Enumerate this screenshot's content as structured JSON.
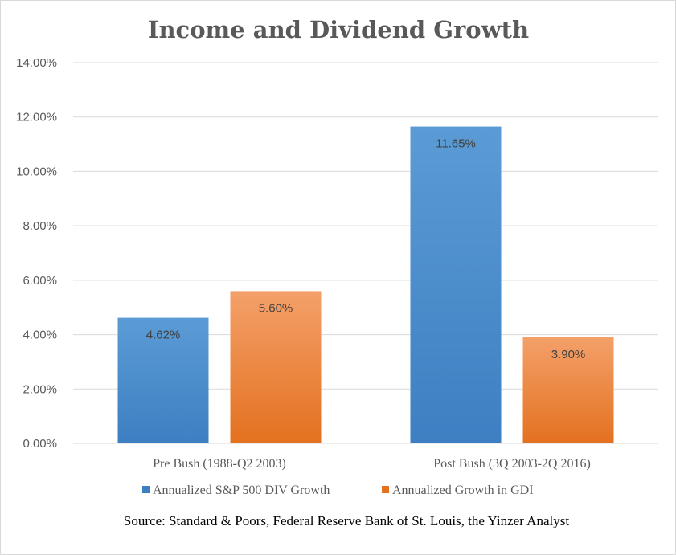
{
  "chart_data": {
    "type": "bar",
    "title": "Income and Dividend Growth",
    "categories": [
      "Pre Bush (1988-Q2 2003)",
      "Post Bush (3Q 2003-2Q 2016)"
    ],
    "series": [
      {
        "name": "Annualized S&P 500 DIV Growth",
        "values": [
          4.62,
          11.65
        ],
        "labels": [
          "4.62%",
          "11.65%"
        ],
        "color": "#5b9bd5",
        "color_dark": "#3d7fc2"
      },
      {
        "name": "Annualized Growth in GDI",
        "values": [
          5.6,
          3.9
        ],
        "labels": [
          "5.60%",
          "3.90%"
        ],
        "color": "#f4a06a",
        "color_dark": "#e3711f"
      }
    ],
    "ylim": [
      0,
      14
    ],
    "yticks": [
      0,
      2,
      4,
      6,
      8,
      10,
      12,
      14
    ],
    "ytick_labels": [
      "0.00%",
      "2.00%",
      "4.00%",
      "6.00%",
      "8.00%",
      "10.00%",
      "12.00%",
      "14.00%"
    ],
    "xlabel": "",
    "ylabel": "",
    "grid": true,
    "legend_position": "bottom",
    "source": "Source: Standard & Poors, Federal Reserve Bank of St. Louis, the Yinzer Analyst"
  }
}
